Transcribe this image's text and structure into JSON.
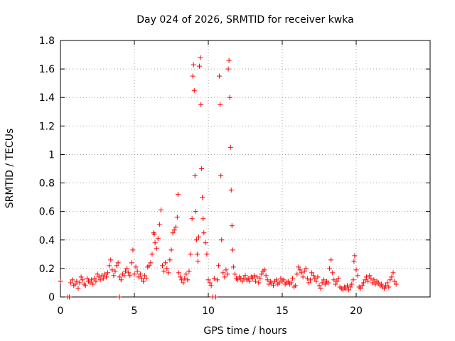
{
  "chart_data": {
    "type": "scatter",
    "title": "Day 024 of 2026, SRMTID for receiver kwka",
    "xlabel": "GPS time / hours",
    "ylabel": "SRMTID / TECUs",
    "xlim": [
      0,
      25
    ],
    "ylim": [
      0,
      1.8
    ],
    "grid": true,
    "marker": "+",
    "x_ticks": [
      0,
      5,
      10,
      15,
      20
    ],
    "y_ticks": [
      0,
      0.2,
      0.4,
      0.6,
      0.8,
      1,
      1.2,
      1.4,
      1.6,
      1.8
    ],
    "x_tick_labels": [
      "0",
      "5",
      "10",
      "15",
      "20"
    ],
    "y_tick_labels": [
      "0",
      "0.2",
      "0.4",
      "0.6",
      "0.8",
      "1",
      "1.2",
      "1.4",
      "1.6",
      "1.8"
    ],
    "series": [
      {
        "name": "SRMTID",
        "color": "#ff0000",
        "points": [
          [
            0.0,
            0.11
          ],
          [
            0.5,
            0.0
          ],
          [
            0.6,
            0.0
          ],
          [
            0.7,
            0.1
          ],
          [
            0.8,
            0.12
          ],
          [
            0.9,
            0.08
          ],
          [
            1.0,
            0.09
          ],
          [
            1.1,
            0.11
          ],
          [
            1.2,
            0.06
          ],
          [
            1.3,
            0.1
          ],
          [
            1.4,
            0.14
          ],
          [
            1.5,
            0.12
          ],
          [
            1.6,
            0.09
          ],
          [
            1.7,
            0.08
          ],
          [
            1.8,
            0.13
          ],
          [
            1.9,
            0.11
          ],
          [
            2.0,
            0.1
          ],
          [
            2.1,
            0.12
          ],
          [
            2.2,
            0.09
          ],
          [
            2.3,
            0.13
          ],
          [
            2.4,
            0.11
          ],
          [
            2.5,
            0.16
          ],
          [
            2.6,
            0.14
          ],
          [
            2.7,
            0.12
          ],
          [
            2.8,
            0.15
          ],
          [
            2.9,
            0.13
          ],
          [
            3.0,
            0.16
          ],
          [
            3.1,
            0.14
          ],
          [
            3.2,
            0.17
          ],
          [
            3.3,
            0.22
          ],
          [
            3.4,
            0.26
          ],
          [
            3.5,
            0.19
          ],
          [
            3.6,
            0.15
          ],
          [
            3.7,
            0.18
          ],
          [
            3.8,
            0.22
          ],
          [
            3.9,
            0.24
          ],
          [
            4.0,
            0.14
          ],
          [
            4.1,
            0.12
          ],
          [
            4.0,
            0.0
          ],
          [
            4.2,
            0.16
          ],
          [
            4.3,
            0.15
          ],
          [
            4.4,
            0.18
          ],
          [
            4.5,
            0.2
          ],
          [
            4.6,
            0.17
          ],
          [
            4.7,
            0.15
          ],
          [
            4.8,
            0.24
          ],
          [
            4.9,
            0.33
          ],
          [
            5.0,
            0.16
          ],
          [
            5.1,
            0.21
          ],
          [
            5.2,
            0.18
          ],
          [
            5.3,
            0.14
          ],
          [
            5.4,
            0.16
          ],
          [
            5.5,
            0.13
          ],
          [
            5.6,
            0.11
          ],
          [
            5.7,
            0.15
          ],
          [
            5.8,
            0.13
          ],
          [
            5.9,
            0.21
          ],
          [
            6.0,
            0.22
          ],
          [
            6.1,
            0.24
          ],
          [
            6.2,
            0.3
          ],
          [
            6.3,
            0.45
          ],
          [
            6.35,
            0.44
          ],
          [
            6.4,
            0.38
          ],
          [
            6.5,
            0.34
          ],
          [
            6.6,
            0.41
          ],
          [
            6.7,
            0.51
          ],
          [
            6.8,
            0.61
          ],
          [
            6.9,
            0.22
          ],
          [
            7.0,
            0.18
          ],
          [
            7.1,
            0.24
          ],
          [
            7.2,
            0.2
          ],
          [
            7.3,
            0.17
          ],
          [
            7.4,
            0.26
          ],
          [
            7.5,
            0.33
          ],
          [
            7.6,
            0.45
          ],
          [
            7.7,
            0.47
          ],
          [
            7.8,
            0.49
          ],
          [
            7.9,
            0.56
          ],
          [
            7.95,
            0.72
          ],
          [
            8.0,
            0.17
          ],
          [
            8.1,
            0.14
          ],
          [
            8.2,
            0.12
          ],
          [
            8.3,
            0.1
          ],
          [
            8.4,
            0.13
          ],
          [
            8.5,
            0.16
          ],
          [
            8.6,
            0.12
          ],
          [
            8.7,
            0.18
          ],
          [
            8.8,
            0.3
          ],
          [
            8.9,
            0.55
          ],
          [
            8.95,
            1.55
          ],
          [
            9.0,
            1.63
          ],
          [
            9.05,
            1.45
          ],
          [
            9.1,
            0.85
          ],
          [
            9.15,
            0.6
          ],
          [
            9.2,
            0.4
          ],
          [
            9.25,
            0.3
          ],
          [
            9.3,
            0.25
          ],
          [
            9.35,
            0.42
          ],
          [
            9.4,
            1.62
          ],
          [
            9.45,
            1.68
          ],
          [
            9.5,
            1.35
          ],
          [
            9.55,
            0.9
          ],
          [
            9.6,
            0.7
          ],
          [
            9.65,
            0.55
          ],
          [
            9.7,
            0.45
          ],
          [
            9.8,
            0.38
          ],
          [
            9.9,
            0.3
          ],
          [
            10.0,
            0.12
          ],
          [
            10.1,
            0.1
          ],
          [
            10.2,
            0.08
          ],
          [
            10.3,
            0.0
          ],
          [
            10.4,
            0.13
          ],
          [
            10.5,
            0.0
          ],
          [
            10.6,
            0.12
          ],
          [
            10.7,
            0.22
          ],
          [
            10.75,
            1.55
          ],
          [
            10.8,
            1.35
          ],
          [
            10.85,
            0.85
          ],
          [
            10.9,
            0.4
          ],
          [
            11.0,
            0.17
          ],
          [
            11.1,
            0.14
          ],
          [
            11.2,
            0.19
          ],
          [
            11.3,
            0.16
          ],
          [
            11.35,
            1.6
          ],
          [
            11.4,
            1.66
          ],
          [
            11.45,
            1.4
          ],
          [
            11.5,
            1.05
          ],
          [
            11.55,
            0.75
          ],
          [
            11.6,
            0.5
          ],
          [
            11.65,
            0.33
          ],
          [
            11.7,
            0.21
          ],
          [
            11.8,
            0.16
          ],
          [
            11.9,
            0.13
          ],
          [
            12.0,
            0.12
          ],
          [
            12.1,
            0.14
          ],
          [
            12.2,
            0.13
          ],
          [
            12.3,
            0.11
          ],
          [
            12.4,
            0.13
          ],
          [
            12.5,
            0.15
          ],
          [
            12.6,
            0.12
          ],
          [
            12.7,
            0.13
          ],
          [
            12.8,
            0.11
          ],
          [
            12.9,
            0.14
          ],
          [
            13.0,
            0.13
          ],
          [
            13.1,
            0.15
          ],
          [
            13.2,
            0.11
          ],
          [
            13.3,
            0.14
          ],
          [
            13.4,
            0.1
          ],
          [
            13.5,
            0.13
          ],
          [
            13.6,
            0.16
          ],
          [
            13.7,
            0.18
          ],
          [
            13.8,
            0.19
          ],
          [
            13.9,
            0.15
          ],
          [
            14.0,
            0.12
          ],
          [
            14.1,
            0.09
          ],
          [
            14.2,
            0.11
          ],
          [
            14.3,
            0.1
          ],
          [
            14.4,
            0.08
          ],
          [
            14.5,
            0.11
          ],
          [
            14.6,
            0.12
          ],
          [
            14.7,
            0.09
          ],
          [
            14.8,
            0.1
          ],
          [
            14.9,
            0.13
          ],
          [
            15.0,
            0.11
          ],
          [
            15.1,
            0.12
          ],
          [
            15.2,
            0.09
          ],
          [
            15.3,
            0.1
          ],
          [
            15.4,
            0.11
          ],
          [
            15.5,
            0.09
          ],
          [
            15.6,
            0.1
          ],
          [
            15.7,
            0.13
          ],
          [
            15.8,
            0.07
          ],
          [
            15.9,
            0.08
          ],
          [
            16.0,
            0.16
          ],
          [
            16.1,
            0.21
          ],
          [
            16.2,
            0.19
          ],
          [
            16.3,
            0.17
          ],
          [
            16.4,
            0.14
          ],
          [
            16.5,
            0.18
          ],
          [
            16.6,
            0.2
          ],
          [
            16.7,
            0.13
          ],
          [
            16.8,
            0.1
          ],
          [
            16.9,
            0.12
          ],
          [
            17.0,
            0.17
          ],
          [
            17.1,
            0.15
          ],
          [
            17.2,
            0.13
          ],
          [
            17.3,
            0.11
          ],
          [
            17.4,
            0.14
          ],
          [
            17.5,
            0.08
          ],
          [
            17.6,
            0.06
          ],
          [
            17.7,
            0.1
          ],
          [
            17.8,
            0.12
          ],
          [
            17.9,
            0.09
          ],
          [
            18.0,
            0.11
          ],
          [
            18.1,
            0.1
          ],
          [
            18.2,
            0.2
          ],
          [
            18.3,
            0.26
          ],
          [
            18.4,
            0.17
          ],
          [
            18.5,
            0.12
          ],
          [
            18.6,
            0.09
          ],
          [
            18.7,
            0.11
          ],
          [
            18.8,
            0.13
          ],
          [
            18.9,
            0.07
          ],
          [
            19.0,
            0.06
          ],
          [
            19.1,
            0.05
          ],
          [
            19.2,
            0.07
          ],
          [
            19.3,
            0.06
          ],
          [
            19.4,
            0.08
          ],
          [
            19.5,
            0.05
          ],
          [
            19.6,
            0.07
          ],
          [
            19.7,
            0.09
          ],
          [
            19.8,
            0.12
          ],
          [
            19.85,
            0.25
          ],
          [
            19.9,
            0.29
          ],
          [
            20.0,
            0.19
          ],
          [
            20.1,
            0.15
          ],
          [
            20.2,
            0.07
          ],
          [
            20.3,
            0.06
          ],
          [
            20.4,
            0.08
          ],
          [
            20.5,
            0.1
          ],
          [
            20.6,
            0.12
          ],
          [
            20.7,
            0.14
          ],
          [
            20.8,
            0.11
          ],
          [
            20.9,
            0.15
          ],
          [
            21.0,
            0.13
          ],
          [
            21.1,
            0.1
          ],
          [
            21.2,
            0.12
          ],
          [
            21.3,
            0.09
          ],
          [
            21.4,
            0.11
          ],
          [
            21.5,
            0.1
          ],
          [
            21.6,
            0.08
          ],
          [
            21.7,
            0.09
          ],
          [
            21.8,
            0.07
          ],
          [
            21.9,
            0.06
          ],
          [
            22.0,
            0.08
          ],
          [
            22.1,
            0.1
          ],
          [
            22.2,
            0.07
          ],
          [
            22.3,
            0.12
          ],
          [
            22.4,
            0.14
          ],
          [
            22.5,
            0.17
          ],
          [
            22.6,
            0.11
          ],
          [
            22.7,
            0.09
          ]
        ]
      }
    ]
  }
}
